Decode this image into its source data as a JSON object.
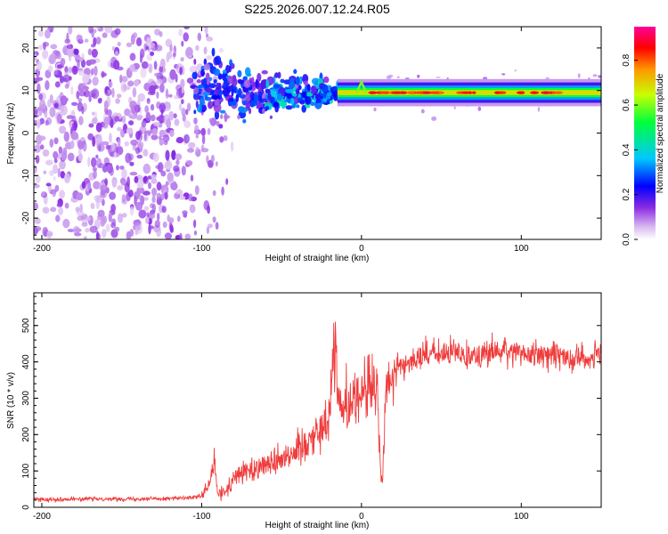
{
  "title": "S225.2026.007.12.24.R05",
  "chart_data": [
    {
      "type": "heatmap",
      "xlabel": "Height of straight line (km)",
      "ylabel": "Frequency (Hz)",
      "xlim": [
        -205,
        150
      ],
      "ylim": [
        -25,
        25
      ],
      "xticks": [
        -200,
        -100,
        0,
        100
      ],
      "yticks": [
        -20,
        -10,
        0,
        10,
        20
      ],
      "colorbar": {
        "label": "Normalized spectral amplitude",
        "range": [
          0,
          0.95
        ],
        "ticks": [
          0.0,
          0.2,
          0.4,
          0.6,
          0.8
        ]
      },
      "features": {
        "line_frequency_hz": 9.5,
        "noise_region_km": [
          -205,
          -95
        ],
        "peak_near_km": 0,
        "peak_frequency_hz": 12
      }
    },
    {
      "type": "line",
      "xlabel": "Height of straight line (km)",
      "ylabel": "SNR (10 * v/v)",
      "xlim": [
        -205,
        150
      ],
      "ylim": [
        0,
        590
      ],
      "xticks": [
        -200,
        -100,
        0,
        100
      ],
      "yticks": [
        0,
        100,
        200,
        300,
        400,
        500
      ],
      "color": "#f03c3c",
      "series": [
        {
          "x": [
            -205,
            -190,
            -170,
            -150,
            -130,
            -110,
            -100,
            -95,
            -92,
            -90,
            -85,
            -80,
            -75,
            -70,
            -65,
            -60,
            -55,
            -50,
            -45,
            -40,
            -35,
            -30,
            -25,
            -20,
            -17,
            -15,
            -12,
            -10,
            -5,
            0,
            5,
            10,
            12,
            13,
            15,
            20,
            25,
            30,
            35,
            40,
            50,
            60,
            70,
            80,
            90,
            100,
            110,
            120,
            130,
            140,
            150
          ],
          "y": [
            22,
            22,
            23,
            23,
            24,
            25,
            30,
            60,
            130,
            35,
            40,
            80,
            95,
            100,
            115,
            120,
            125,
            140,
            150,
            155,
            180,
            200,
            210,
            260,
            480,
            350,
            250,
            280,
            300,
            320,
            330,
            310,
            100,
            60,
            300,
            370,
            390,
            400,
            415,
            420,
            420,
            425,
            420,
            425,
            430,
            425,
            420,
            420,
            415,
            410,
            420
          ]
        }
      ]
    }
  ]
}
